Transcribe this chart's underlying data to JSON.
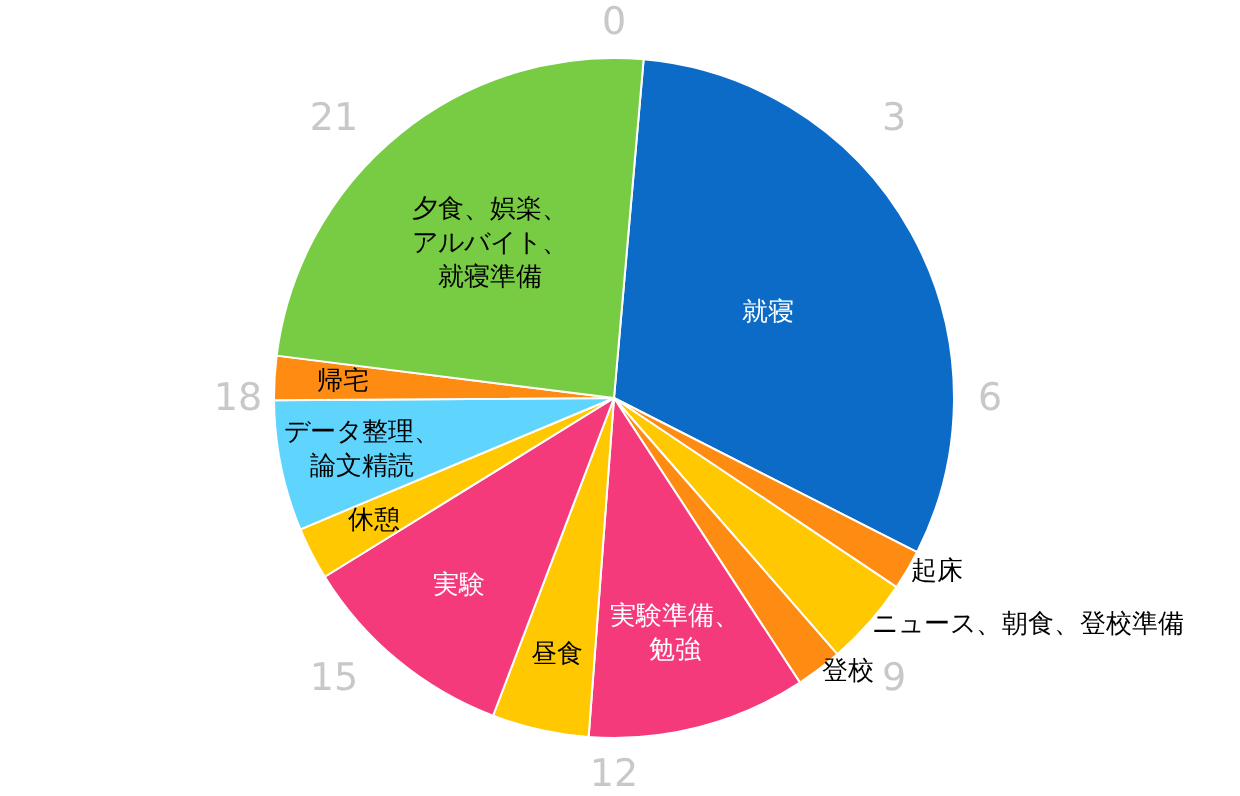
{
  "chart_data": {
    "type": "pie",
    "categories": [
      "就寝",
      "起床",
      "ニュース、朝食、登校準備",
      "登校",
      "実験準備、勉強",
      "昼食",
      "実験",
      "休憩",
      "データ整理、論文精読",
      "帰宅",
      "夕食、娯楽、アルバイト、就寝準備"
    ],
    "values": [
      31.1,
      1.9,
      4.2,
      2.2,
      10.4,
      4.6,
      10.4,
      2.5,
      6.2,
      2.1,
      24.4
    ],
    "colors": [
      "#0b6bc6",
      "#ff8c12",
      "#ffc800",
      "#ff8c12",
      "#f43a7b",
      "#ffc800",
      "#f43a7b",
      "#ffc800",
      "#5fd4fd",
      "#ff8c12",
      "#77cc44"
    ],
    "annotations": [
      "0",
      "3",
      "6",
      "9",
      "12",
      "15",
      "18",
      "21"
    ],
    "legend": false
  }
}
